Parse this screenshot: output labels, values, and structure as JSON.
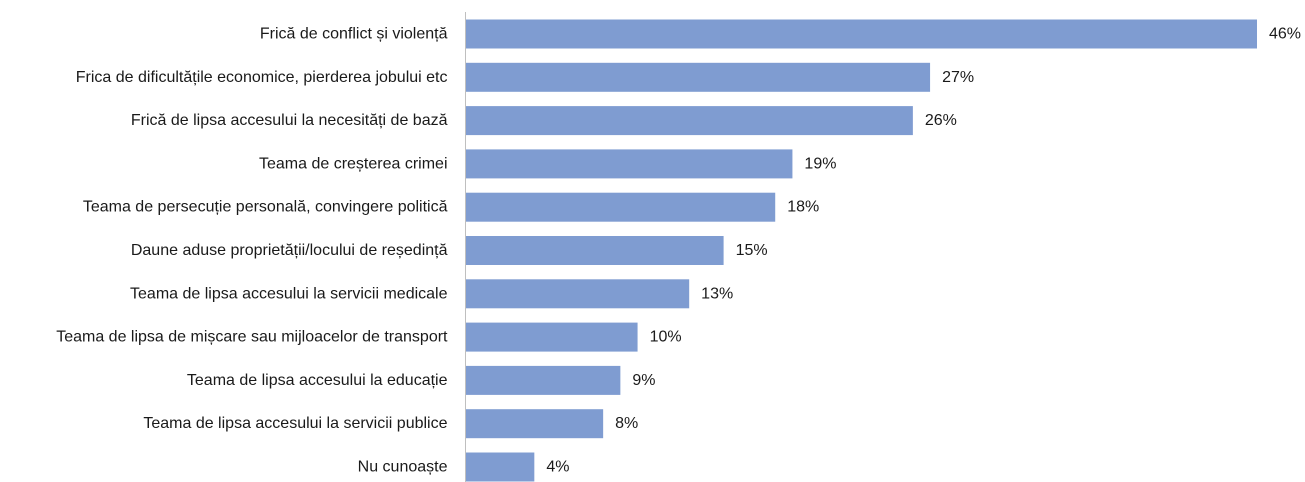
{
  "chart_data": {
    "type": "bar",
    "orientation": "horizontal",
    "categories": [
      "Frică de conflict și violență",
      "Frica de dificultățile economice, pierderea jobului etc",
      "Frică de lipsa accesului la necesități de bază",
      "Teama de creșterea crimei",
      "Teama de persecuție personală, convingere politică",
      "Daune aduse proprietății/locului de reședință",
      "Teama de lipsa accesului la servicii medicale",
      "Teama de lipsa de mișcare sau mijloacelor de transport",
      "Teama de lipsa accesului la educație",
      "Teama de lipsa accesului la servicii publice",
      "Nu cunoaște"
    ],
    "values": [
      46,
      27,
      26,
      19,
      18,
      15,
      13,
      10,
      9,
      8,
      4
    ],
    "value_labels": [
      "46%",
      "27%",
      "26%",
      "19%",
      "18%",
      "15%",
      "13%",
      "10%",
      "9%",
      "8%",
      "4%"
    ],
    "unit": "%",
    "xlim": [
      0,
      46
    ],
    "title": "",
    "xlabel": "",
    "ylabel": "",
    "grid": false,
    "legend": "none",
    "bar_color": "#7f9cd1",
    "axis_color": "#bfbfbf"
  }
}
